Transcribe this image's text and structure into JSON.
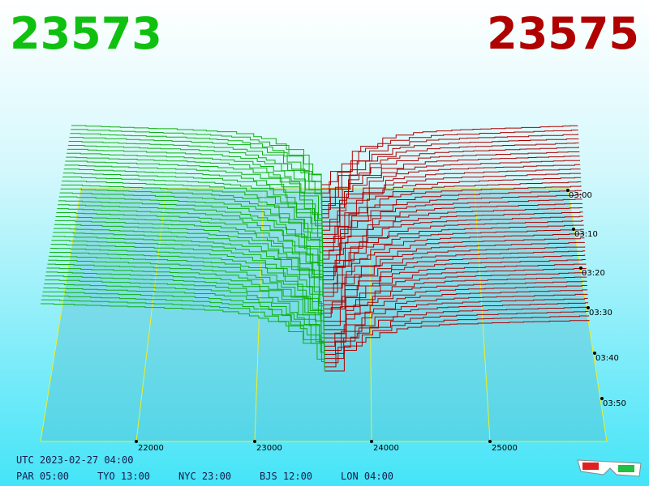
{
  "header": {
    "bid": "23573",
    "ask": "23575"
  },
  "price_axis": [
    "22000",
    "23000",
    "24000",
    "25000"
  ],
  "time_axis": [
    "03:00",
    "03:10",
    "03:20",
    "03:30",
    "03:40",
    "03:50"
  ],
  "footer": {
    "utc": "UTC 2023-02-27 04:00",
    "zones": [
      "PAR 05:00",
      "TYO 13:00",
      "NYC 23:00",
      "BJS 12:00",
      "LON 04:00"
    ]
  }
}
